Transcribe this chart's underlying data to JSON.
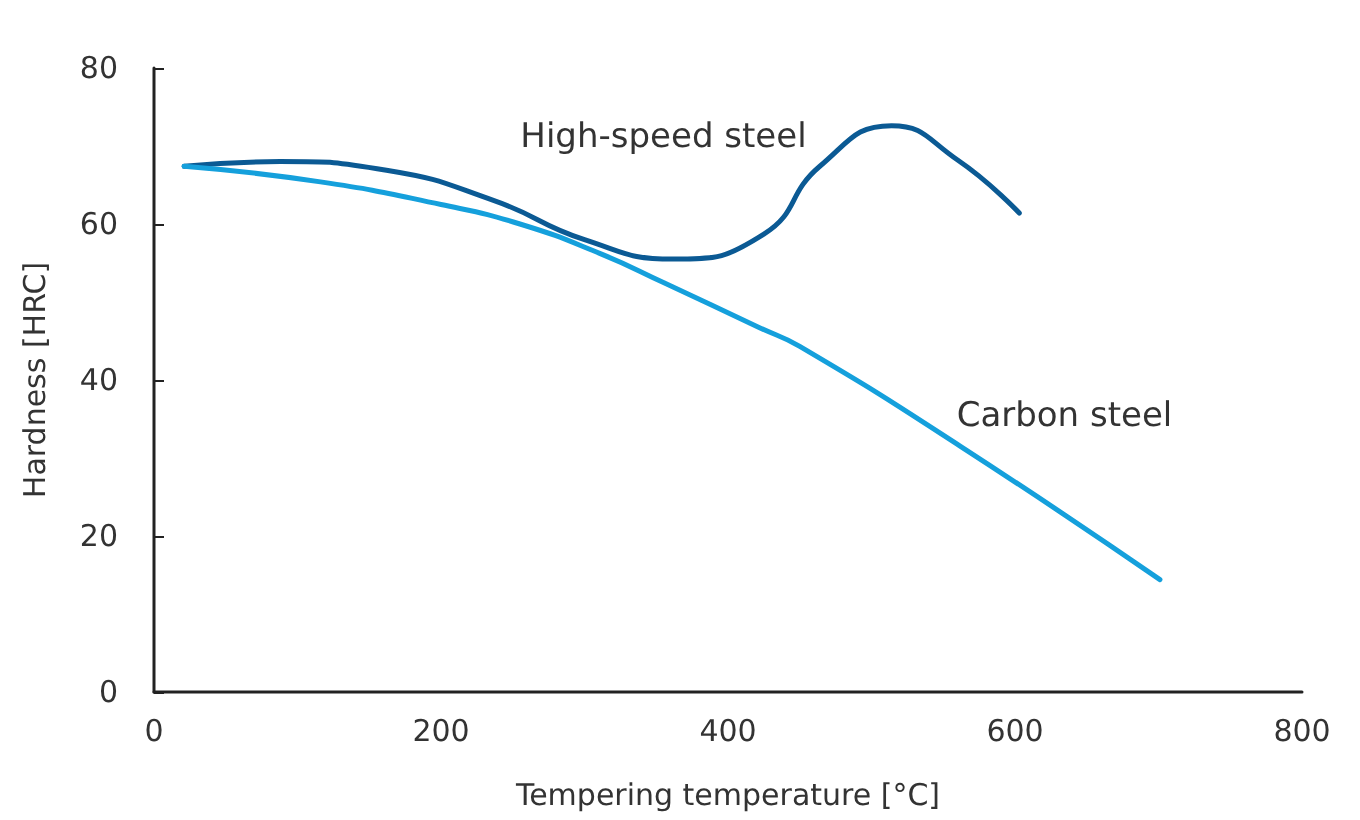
{
  "chart_data": {
    "type": "line",
    "xlabel": "Tempering temperature [°C]",
    "ylabel": "Hardness [HRC]",
    "xlim": [
      0,
      800
    ],
    "xticks": [
      0,
      200,
      400,
      600,
      800
    ],
    "ylim": [
      0,
      80
    ],
    "yticks": [
      0,
      20,
      40,
      60,
      80
    ],
    "grid": false,
    "legend": false,
    "marker": "none",
    "line_style": "solid",
    "series": [
      {
        "name": "High-speed steel",
        "color": "#0b5a94",
        "x": [
          21,
          88,
          162,
          237,
          300,
          362,
          425,
          464,
          514,
          560,
          603
        ],
        "values": [
          67.4,
          68,
          66.9,
          63,
          58,
          55.5,
          58.7,
          67.4,
          72.6,
          68.2,
          61.4
        ]
      },
      {
        "name": "Carbon steel",
        "color": "#15a0dc",
        "x": [
          21,
          116,
          200,
          255,
          311,
          355,
          422,
          450,
          562,
          701
        ],
        "values": [
          67.4,
          65.4,
          62.5,
          60,
          56.2,
          52.5,
          46.7,
          44.3,
          31.5,
          14.4
        ]
      }
    ]
  }
}
